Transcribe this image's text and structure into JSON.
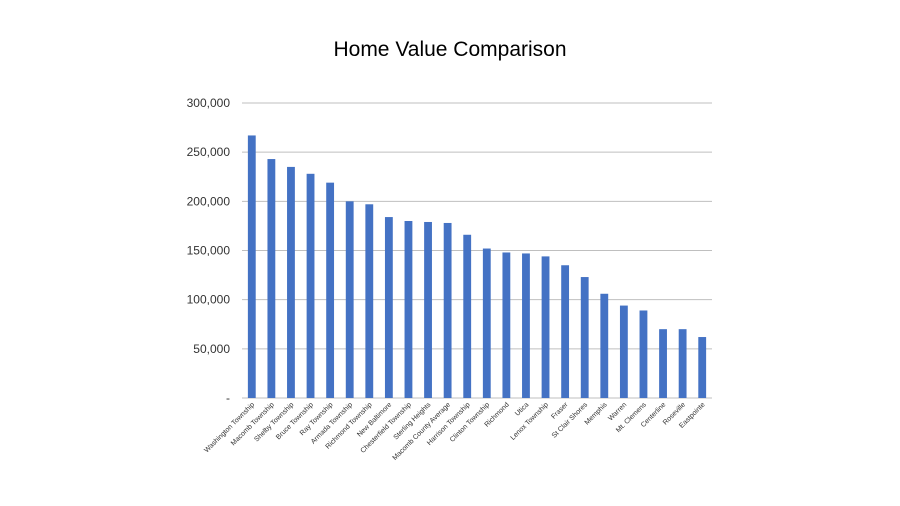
{
  "chart_data": {
    "type": "bar",
    "title": "Home Value Comparison",
    "xlabel": "",
    "ylabel": "",
    "ylim": [
      0,
      300000
    ],
    "yticks": [
      0,
      50000,
      100000,
      150000,
      200000,
      250000,
      300000
    ],
    "ytick_labels": [
      "-",
      "50,000",
      "100,000",
      "150,000",
      "200,000",
      "250,000",
      "300,000"
    ],
    "grid": true,
    "bar_color": "#4472c4",
    "categories": [
      "Washington Township",
      "Macomb Township",
      "Shelby Township",
      "Bruce Township",
      "Ray Township",
      "Armada Township",
      "Richmond Township",
      "New Baltimore",
      "Chesterfield Township",
      "Sterling Heights",
      "Macomb County Average",
      "Harrison Township",
      "Clinton Township",
      "Richmond",
      "Utica",
      "Lenox Township",
      "Fraser",
      "St Clair Shores",
      "Memphis",
      "Warren",
      "Mt. Clemens",
      "Centerline",
      "Roseville",
      "Eastpointe"
    ],
    "values": [
      267000,
      243000,
      235000,
      228000,
      219000,
      200000,
      197000,
      184000,
      180000,
      179000,
      178000,
      166000,
      152000,
      148000,
      147000,
      144000,
      135000,
      123000,
      106000,
      94000,
      89000,
      70000,
      70000,
      62000
    ]
  }
}
